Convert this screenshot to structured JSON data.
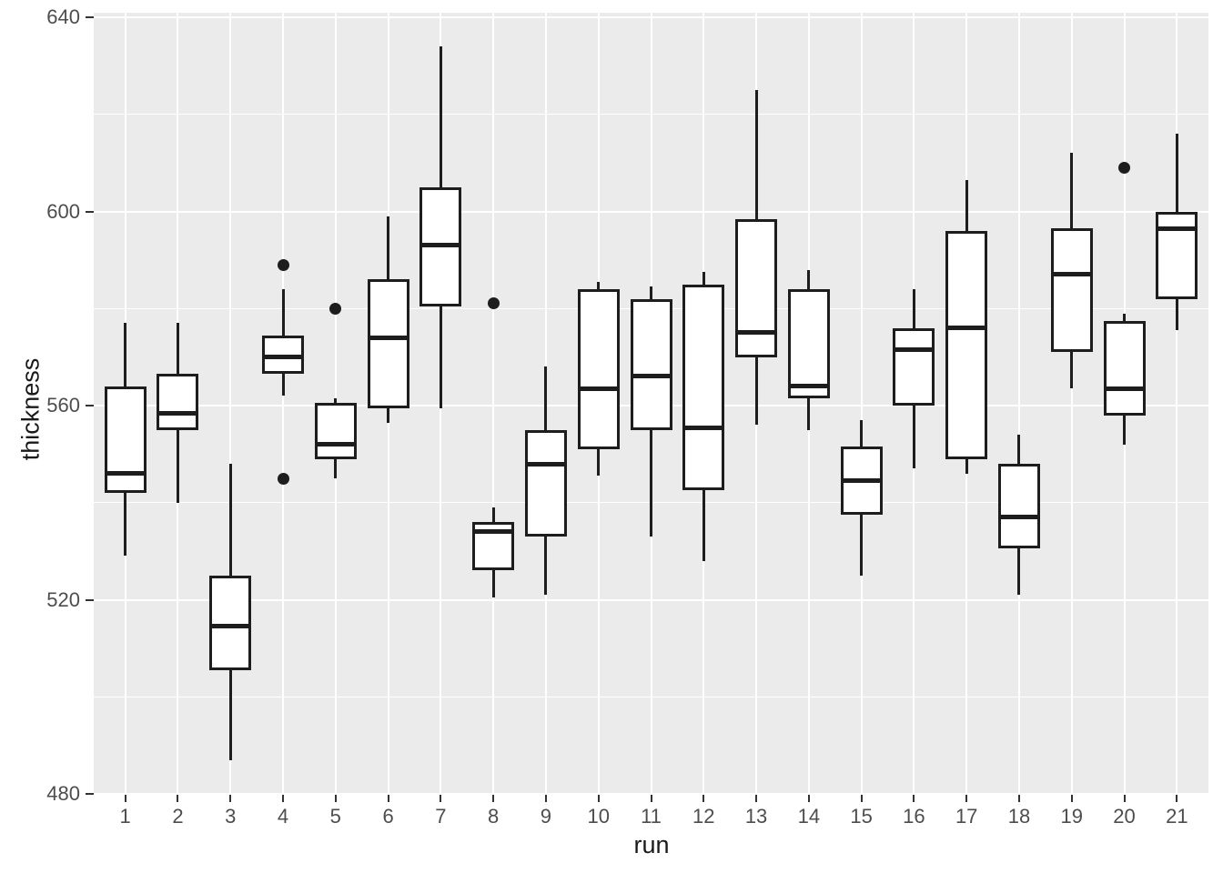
{
  "chart_data": {
    "type": "boxplot",
    "title": "",
    "xlabel": "run",
    "ylabel": "thickness",
    "x_categories": [
      "1",
      "2",
      "3",
      "4",
      "5",
      "6",
      "7",
      "8",
      "9",
      "10",
      "11",
      "12",
      "13",
      "14",
      "15",
      "16",
      "17",
      "18",
      "19",
      "20",
      "21"
    ],
    "y_ticks": [
      480,
      520,
      560,
      600,
      640
    ],
    "y_minor_ticks": [
      500,
      540,
      580,
      620
    ],
    "ylim": [
      480,
      640.94
    ],
    "grid": true,
    "legend": "none",
    "series": [
      {
        "run": "1",
        "whislo": 529,
        "q1": 542,
        "med": 546,
        "q3": 564,
        "whishi": 577,
        "fliers": []
      },
      {
        "run": "2",
        "whislo": 540,
        "q1": 555,
        "med": 558.5,
        "q3": 566.5,
        "whishi": 577,
        "fliers": []
      },
      {
        "run": "3",
        "whislo": 487,
        "q1": 505.5,
        "med": 514.5,
        "q3": 525,
        "whishi": 548,
        "fliers": []
      },
      {
        "run": "4",
        "whislo": 562,
        "q1": 566.5,
        "med": 570,
        "q3": 574.5,
        "whishi": 584,
        "fliers": [
          589,
          545
        ]
      },
      {
        "run": "5",
        "whislo": 545,
        "q1": 549,
        "med": 552,
        "q3": 560.5,
        "whishi": 561.5,
        "fliers": [
          580
        ]
      },
      {
        "run": "6",
        "whislo": 556.5,
        "q1": 559.5,
        "med": 574,
        "q3": 586,
        "whishi": 599,
        "fliers": []
      },
      {
        "run": "7",
        "whislo": 559.5,
        "q1": 580.5,
        "med": 593,
        "q3": 605,
        "whishi": 634,
        "fliers": []
      },
      {
        "run": "8",
        "whislo": 520.5,
        "q1": 526,
        "med": 534,
        "q3": 536,
        "whishi": 539,
        "fliers": [
          581
        ]
      },
      {
        "run": "9",
        "whislo": 521,
        "q1": 533,
        "med": 548,
        "q3": 555,
        "whishi": 568,
        "fliers": []
      },
      {
        "run": "10",
        "whislo": 545.5,
        "q1": 551,
        "med": 563.5,
        "q3": 584,
        "whishi": 585.5,
        "fliers": []
      },
      {
        "run": "11",
        "whislo": 533,
        "q1": 555,
        "med": 566,
        "q3": 582,
        "whishi": 584.5,
        "fliers": []
      },
      {
        "run": "12",
        "whislo": 528,
        "q1": 542.5,
        "med": 555.5,
        "q3": 585,
        "whishi": 587.5,
        "fliers": []
      },
      {
        "run": "13",
        "whislo": 556,
        "q1": 570,
        "med": 575,
        "q3": 598.5,
        "whishi": 625,
        "fliers": []
      },
      {
        "run": "14",
        "whislo": 555,
        "q1": 561.5,
        "med": 564,
        "q3": 584,
        "whishi": 588,
        "fliers": []
      },
      {
        "run": "15",
        "whislo": 525,
        "q1": 537.5,
        "med": 544.5,
        "q3": 551.5,
        "whishi": 557,
        "fliers": []
      },
      {
        "run": "16",
        "whislo": 547,
        "q1": 560,
        "med": 571.5,
        "q3": 576,
        "whishi": 584,
        "fliers": []
      },
      {
        "run": "17",
        "whislo": 546,
        "q1": 549,
        "med": 576,
        "q3": 596,
        "whishi": 606.5,
        "fliers": []
      },
      {
        "run": "18",
        "whislo": 521,
        "q1": 530.5,
        "med": 537,
        "q3": 548,
        "whishi": 554,
        "fliers": []
      },
      {
        "run": "19",
        "whislo": 563.5,
        "q1": 571,
        "med": 587,
        "q3": 596.5,
        "whishi": 612,
        "fliers": []
      },
      {
        "run": "20",
        "whislo": 552,
        "q1": 558,
        "med": 563.5,
        "q3": 577.5,
        "whishi": 579,
        "fliers": [
          609
        ]
      },
      {
        "run": "21",
        "whislo": 575.5,
        "q1": 582,
        "med": 596.5,
        "q3": 600,
        "whishi": 616,
        "fliers": []
      }
    ],
    "style": {
      "panel_bg": "#EBEBEB",
      "grid_color": "#FFFFFF",
      "stroke_color": "#1D1D1D",
      "box_fill": "#FFFFFF",
      "tick_label_color": "#4D4D4D",
      "axis_title_color": "#1A1A1A"
    }
  }
}
